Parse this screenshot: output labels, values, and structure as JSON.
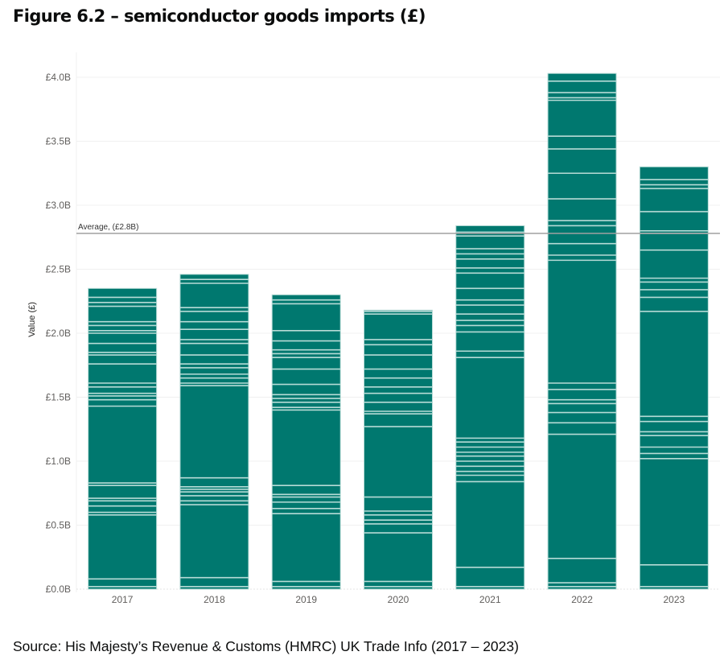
{
  "page": {
    "title": "Figure 6.2 – semiconductor goods imports (£)",
    "source": "Source: His Majesty’s Revenue & Customs (HMRC) UK Trade Info (2017 – 2023)"
  },
  "chart_data": {
    "type": "bar",
    "stacked": true,
    "title": "Figure 6.2 – semiconductor goods imports (£)",
    "xlabel": "",
    "ylabel": "Value (£)",
    "ylim": [
      0,
      4.1
    ],
    "yunit": "£B",
    "yticks": [
      0.0,
      0.5,
      1.0,
      1.5,
      2.0,
      2.5,
      3.0,
      3.5,
      4.0
    ],
    "ytick_labels": [
      "£0.0B",
      "£0.5B",
      "£1.0B",
      "£1.5B",
      "£2.0B",
      "£2.5B",
      "£3.0B",
      "£3.5B",
      "£4.0B"
    ],
    "grid": true,
    "legend": "none",
    "categories": [
      "2017",
      "2018",
      "2019",
      "2020",
      "2021",
      "2022",
      "2023"
    ],
    "values": [
      2.35,
      2.46,
      2.3,
      2.18,
      2.84,
      4.03,
      3.3
    ],
    "bar_color": "#00786f",
    "separator_color": "#b7dbd6",
    "reference_line": {
      "label": "Average, (£2.8B)",
      "value": 2.78,
      "color": "#a0a0a0"
    },
    "segment_boundaries": [
      [
        0.02,
        0.08,
        0.58,
        0.6,
        0.65,
        0.69,
        0.71,
        0.81,
        0.83,
        1.43,
        1.48,
        1.51,
        1.53,
        1.58,
        1.61,
        1.76,
        1.83,
        1.85,
        1.92,
        2.0,
        2.02,
        2.06,
        2.09,
        2.21,
        2.24,
        2.28
      ],
      [
        0.02,
        0.09,
        0.66,
        0.69,
        0.73,
        0.76,
        0.78,
        0.8,
        0.87,
        1.59,
        1.61,
        1.65,
        1.68,
        1.73,
        1.76,
        1.83,
        1.92,
        1.95,
        2.03,
        2.09,
        2.17,
        2.2,
        2.39,
        2.42
      ],
      [
        0.02,
        0.06,
        0.59,
        0.63,
        0.68,
        0.72,
        0.74,
        0.81,
        1.4,
        1.42,
        1.46,
        1.49,
        1.52,
        1.6,
        1.72,
        1.81,
        1.84,
        1.87,
        1.94,
        2.02,
        2.23,
        2.26
      ],
      [
        0.02,
        0.06,
        0.44,
        0.51,
        0.54,
        0.58,
        0.61,
        0.72,
        1.27,
        1.37,
        1.39,
        1.46,
        1.53,
        1.58,
        1.65,
        1.72,
        1.83,
        1.91,
        1.95,
        2.15,
        2.17
      ],
      [
        0.02,
        0.17,
        0.84,
        0.89,
        0.92,
        0.96,
        1.0,
        1.04,
        1.07,
        1.11,
        1.15,
        1.18,
        1.81,
        1.86,
        2.01,
        2.06,
        2.1,
        2.15,
        2.22,
        2.26,
        2.35,
        2.47,
        2.51,
        2.58,
        2.62,
        2.66,
        2.76,
        2.79
      ],
      [
        0.02,
        0.05,
        0.24,
        1.21,
        1.3,
        1.38,
        1.45,
        1.48,
        1.56,
        1.61,
        2.57,
        2.61,
        2.7,
        2.84,
        2.88,
        3.05,
        3.25,
        3.44,
        3.54,
        3.82,
        3.84,
        3.88,
        3.97
      ],
      [
        0.02,
        0.19,
        1.02,
        1.06,
        1.11,
        1.2,
        1.23,
        1.31,
        1.35,
        2.17,
        2.28,
        2.34,
        2.4,
        2.43,
        2.65,
        2.78,
        2.8,
        2.95,
        3.13,
        3.16,
        3.2
      ]
    ]
  }
}
